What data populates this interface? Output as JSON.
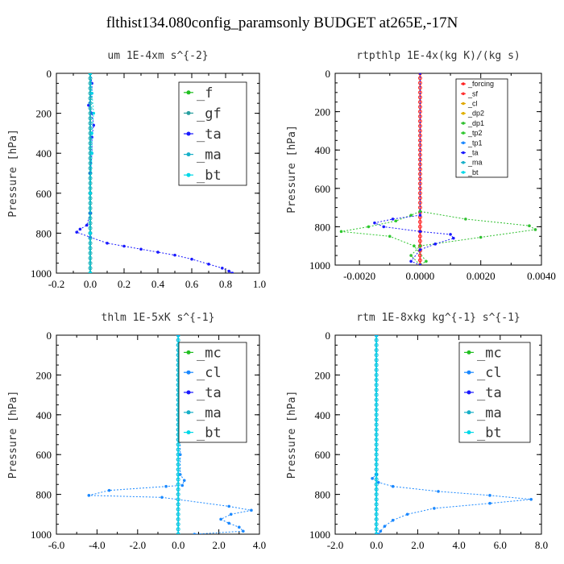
{
  "title": "flthist134.080config_paramsonly  BUDGET at265E,-17N",
  "colors": {
    "f": "#22c022",
    "gf": "#2aa0a0",
    "ta": "#1a1aff",
    "ma": "#18b0c8",
    "bt": "#00d8e8",
    "forcing": "#ff2020",
    "sf": "#ff3030",
    "cl_small": "#e0a800",
    "dp2": "#e0b000",
    "dp1": "#30c030",
    "tp2": "#2ec82e",
    "tp1": "#1a88ff",
    "mc": "#22c022",
    "cl": "#1a88ff"
  },
  "chart_data": [
    {
      "type": "line",
      "title": "um  1E-4xm s^{-2}",
      "ylabel": "Pressure [hPa]",
      "xlim": [
        -0.2,
        1.0
      ],
      "ylim": [
        0,
        1000
      ],
      "xticks": [
        "-0.2",
        "0.0",
        "0.2",
        "0.4",
        "0.6",
        "0.8",
        "1.0"
      ],
      "yticks": [
        "0",
        "200",
        "400",
        "600",
        "800",
        "1000"
      ],
      "legend": [
        "_f",
        "_gf",
        "_ta",
        "_ma",
        "_bt"
      ],
      "legend_placement": "top-right",
      "series": [
        {
          "name": "_f",
          "color_key": "f",
          "points": [
            [
              0.0,
              0
            ],
            [
              0.0,
              200
            ],
            [
              0.0,
              400
            ],
            [
              0.0,
              600
            ],
            [
              0.0,
              800
            ],
            [
              0.0,
              1000
            ]
          ]
        },
        {
          "name": "_gf",
          "color_key": "gf",
          "points": [
            [
              0.0,
              0
            ],
            [
              0.0,
              1000
            ]
          ]
        },
        {
          "name": "_ta",
          "color_key": "ta",
          "points": [
            [
              0.0,
              0
            ],
            [
              0.01,
              50
            ],
            [
              0.01,
              100
            ],
            [
              -0.01,
              160
            ],
            [
              0.01,
              200
            ],
            [
              0.02,
              260
            ],
            [
              0.01,
              320
            ],
            [
              0.01,
              400
            ],
            [
              0.0,
              500
            ],
            [
              0.0,
              600
            ],
            [
              0.0,
              700
            ],
            [
              -0.02,
              760
            ],
            [
              -0.06,
              780
            ],
            [
              -0.08,
              795
            ],
            [
              0.0,
              820
            ],
            [
              0.1,
              850
            ],
            [
              0.2,
              865
            ],
            [
              0.3,
              880
            ],
            [
              0.4,
              895
            ],
            [
              0.5,
              910
            ],
            [
              0.6,
              930
            ],
            [
              0.7,
              955
            ],
            [
              0.78,
              975
            ],
            [
              0.82,
              990
            ],
            [
              0.84,
              1000
            ]
          ]
        },
        {
          "name": "_ma",
          "color_key": "ma",
          "points": [
            [
              0.0,
              0
            ],
            [
              0.0,
              1000
            ]
          ]
        },
        {
          "name": "_bt",
          "color_key": "bt",
          "points": [
            [
              0.0,
              0
            ],
            [
              0.01,
              100
            ],
            [
              0.02,
              200
            ],
            [
              0.01,
              300
            ],
            [
              0.01,
              400
            ],
            [
              0.0,
              600
            ],
            [
              0.0,
              800
            ],
            [
              0.0,
              1000
            ]
          ]
        }
      ]
    },
    {
      "type": "line",
      "title": "rtpthlp  1E-4x(kg K)/(kg s)",
      "ylabel": "Pressure [hPa]",
      "xlim": [
        -0.0028,
        0.004
      ],
      "ylim": [
        0,
        1000
      ],
      "xticks": [
        "-0.0020",
        "0.0000",
        "0.0020",
        "0.0040"
      ],
      "yticks": [
        "0",
        "200",
        "400",
        "600",
        "800",
        "1000"
      ],
      "legend": [
        "_forcing",
        "_sf",
        "_cl",
        "_dp2",
        "_dp1",
        "_tp2",
        "_tp1",
        "_ta",
        "_ma",
        "_bt"
      ],
      "legend_placement": "top-right",
      "series": [
        {
          "name": "_forcing",
          "color_key": "forcing",
          "points": [
            [
              0.0,
              0
            ],
            [
              0.0,
              1000
            ]
          ]
        },
        {
          "name": "_sf",
          "color_key": "sf",
          "points": [
            [
              0.0,
              0
            ],
            [
              0.0,
              1000
            ]
          ]
        },
        {
          "name": "_dp1",
          "color_key": "dp1",
          "points": [
            [
              0.0,
              0
            ],
            [
              0.0,
              720
            ],
            [
              0.0015,
              760
            ],
            [
              0.0036,
              795
            ],
            [
              0.0038,
              815
            ],
            [
              0.002,
              855
            ],
            [
              0.0,
              900
            ],
            [
              -0.0003,
              950
            ],
            [
              0.0,
              1000
            ]
          ]
        },
        {
          "name": "_tp2",
          "color_key": "tp2",
          "points": [
            [
              0.0,
              0
            ],
            [
              0.0,
              720
            ],
            [
              -0.0003,
              740
            ],
            [
              -0.0008,
              770
            ],
            [
              -0.0017,
              800
            ],
            [
              -0.0026,
              825
            ],
            [
              -0.001,
              850
            ],
            [
              -0.0002,
              900
            ],
            [
              0.0002,
              980
            ],
            [
              0.0,
              1000
            ]
          ]
        },
        {
          "name": "_ta",
          "color_key": "ta",
          "points": [
            [
              0.0,
              0
            ],
            [
              0.0,
              740
            ],
            [
              -0.0009,
              760
            ],
            [
              -0.0015,
              780
            ],
            [
              -0.0012,
              800
            ],
            [
              0.0,
              825
            ],
            [
              0.001,
              840
            ],
            [
              0.0011,
              860
            ],
            [
              0.0005,
              890
            ],
            [
              0.0,
              920
            ],
            [
              -0.0003,
              980
            ],
            [
              0.0,
              1000
            ]
          ]
        }
      ]
    },
    {
      "type": "line",
      "title": "thlm  1E-5xK s^{-1}",
      "ylabel": "Pressure [hPa]",
      "xlim": [
        -6.0,
        4.0
      ],
      "ylim": [
        0,
        1000
      ],
      "xticks": [
        "-6.0",
        "-4.0",
        "-2.0",
        "0.0",
        "2.0",
        "4.0"
      ],
      "yticks": [
        "0",
        "200",
        "400",
        "600",
        "800",
        "1000"
      ],
      "legend": [
        "_mc",
        "_cl",
        "_ta",
        "_ma",
        "_bt"
      ],
      "legend_placement": "top-right",
      "series": [
        {
          "name": "_mc",
          "color_key": "mc",
          "points": [
            [
              0.0,
              0
            ],
            [
              0.0,
              1000
            ]
          ]
        },
        {
          "name": "_cl",
          "color_key": "cl",
          "points": [
            [
              0.0,
              0
            ],
            [
              0.1,
              200
            ],
            [
              0.1,
              400
            ],
            [
              0.1,
              600
            ],
            [
              0.1,
              700
            ],
            [
              0.3,
              730
            ],
            [
              0.2,
              755
            ],
            [
              -0.6,
              760
            ],
            [
              -3.4,
              780
            ],
            [
              -4.4,
              805
            ],
            [
              -0.8,
              815
            ],
            [
              2.5,
              860
            ],
            [
              3.6,
              880
            ],
            [
              2.6,
              900
            ],
            [
              2.1,
              925
            ],
            [
              2.5,
              945
            ],
            [
              3.0,
              965
            ],
            [
              3.2,
              985
            ],
            [
              0.8,
              1000
            ]
          ]
        },
        {
          "name": "_ta",
          "color_key": "ta",
          "points": [
            [
              0.0,
              0
            ],
            [
              0.0,
              1000
            ]
          ]
        },
        {
          "name": "_bt",
          "color_key": "bt",
          "points": [
            [
              0.0,
              0
            ],
            [
              0.0,
              1000
            ]
          ]
        }
      ]
    },
    {
      "type": "line",
      "title": "rtm  1E-8xkg kg^{-1} s^{-1}",
      "ylabel": "Pressure [hPa]",
      "xlim": [
        -2.0,
        8.0
      ],
      "ylim": [
        0,
        1000
      ],
      "xticks": [
        "-2.0",
        "0.0",
        "2.0",
        "4.0",
        "6.0",
        "8.0"
      ],
      "yticks": [
        "0",
        "200",
        "400",
        "600",
        "800",
        "1000"
      ],
      "legend": [
        "_mc",
        "_cl",
        "_ta",
        "_ma",
        "_bt"
      ],
      "legend_placement": "top-right",
      "series": [
        {
          "name": "_mc",
          "color_key": "mc",
          "points": [
            [
              0.0,
              0
            ],
            [
              0.0,
              1000
            ]
          ]
        },
        {
          "name": "_cl",
          "color_key": "cl",
          "points": [
            [
              0.0,
              0
            ],
            [
              0.0,
              700
            ],
            [
              -0.2,
              720
            ],
            [
              0.1,
              740
            ],
            [
              0.8,
              760
            ],
            [
              3.0,
              785
            ],
            [
              5.5,
              805
            ],
            [
              7.5,
              825
            ],
            [
              5.5,
              845
            ],
            [
              2.8,
              870
            ],
            [
              1.5,
              900
            ],
            [
              0.8,
              930
            ],
            [
              0.4,
              960
            ],
            [
              0.2,
              985
            ],
            [
              0.1,
              1000
            ]
          ]
        },
        {
          "name": "_ta",
          "color_key": "ta",
          "points": [
            [
              0.0,
              0
            ],
            [
              0.0,
              1000
            ]
          ]
        },
        {
          "name": "_bt",
          "color_key": "bt",
          "points": [
            [
              0.0,
              0
            ],
            [
              0.0,
              1000
            ]
          ]
        }
      ]
    }
  ]
}
